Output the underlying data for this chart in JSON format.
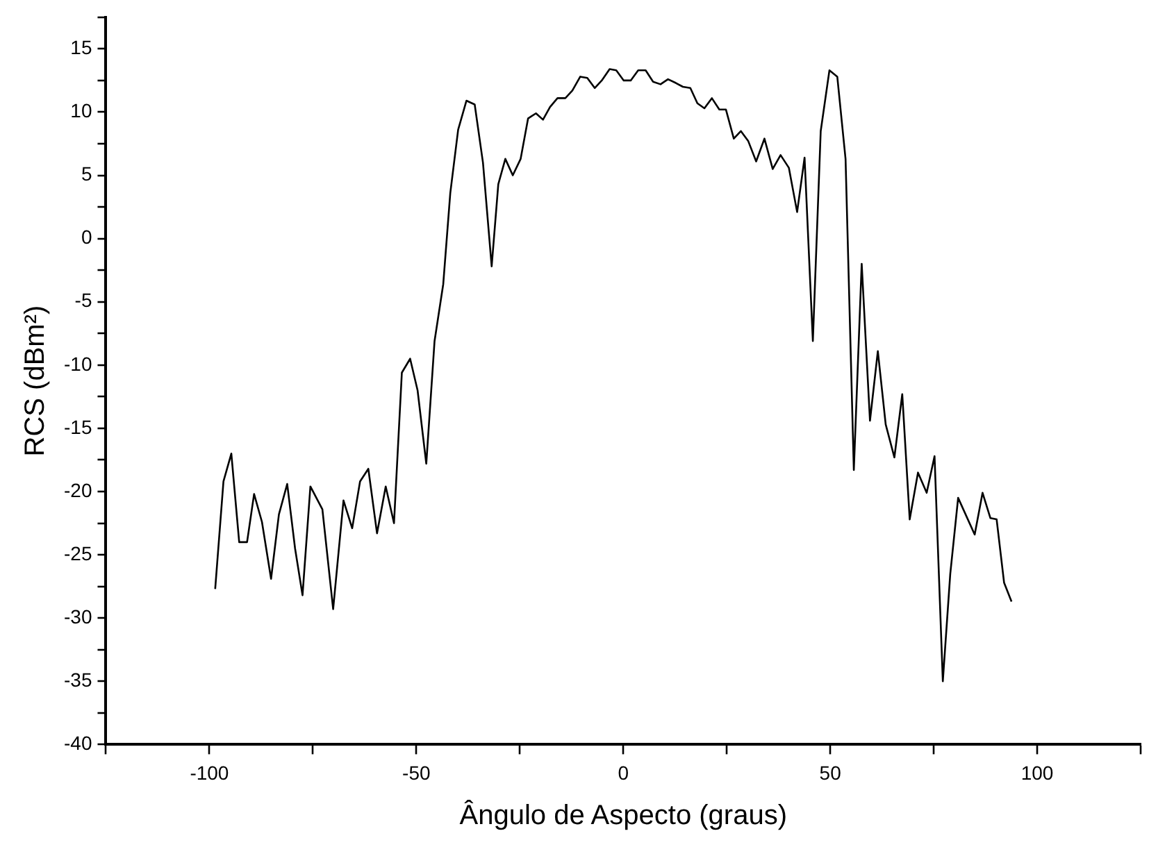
{
  "chart_data": {
    "type": "line",
    "xlabel": "Ângulo de Aspecto (graus)",
    "ylabel": "RCS (dBm²)",
    "x": [
      -98.6,
      -96.6,
      -94.7,
      -92.8,
      -90.9,
      -89.2,
      -87.3,
      -85.1,
      -83.2,
      -81.2,
      -79.3,
      -77.5,
      -75.6,
      -72.7,
      -70.1,
      -67.6,
      -65.5,
      -63.6,
      -61.6,
      -59.5,
      -57.4,
      -55.4,
      -53.5,
      -51.5,
      -49.7,
      -47.6,
      -45.6,
      -43.5,
      -41.8,
      -39.9,
      -37.9,
      -35.9,
      -33.9,
      -31.8,
      -30.2,
      -28.5,
      -26.7,
      -24.8,
      -23.0,
      -21.1,
      -19.4,
      -17.7,
      -15.9,
      -14.0,
      -12.3,
      -10.4,
      -8.7,
      -6.9,
      -5.2,
      -3.3,
      -1.7,
      0.1,
      1.8,
      3.6,
      5.4,
      7.2,
      9.0,
      10.8,
      12.7,
      14.4,
      16.2,
      17.9,
      19.6,
      21.4,
      23.2,
      24.8,
      26.7,
      28.4,
      30.2,
      32.1,
      34.1,
      36.1,
      38.0,
      40.0,
      42.0,
      43.8,
      45.8,
      47.7,
      49.8,
      51.7,
      53.7,
      55.7,
      57.6,
      59.6,
      61.5,
      63.4,
      65.5,
      67.4,
      69.2,
      71.2,
      73.3,
      75.2,
      77.2,
      79.0,
      80.9,
      84.9,
      86.8,
      88.7,
      90.2,
      92.0,
      93.8
    ],
    "series": [
      {
        "color": "#000000",
        "values": [
          -27.7,
          -19.2,
          -17.0,
          -24.0,
          -24.0,
          -20.2,
          -22.4,
          -26.9,
          -21.8,
          -19.4,
          -24.5,
          -28.2,
          -19.6,
          -21.4,
          -29.3,
          -20.7,
          -22.9,
          -19.2,
          -18.2,
          -23.3,
          -19.6,
          -22.5,
          -10.6,
          -9.5,
          -12.0,
          -17.8,
          -8.1,
          -3.6,
          3.6,
          8.6,
          10.9,
          10.6,
          6.0,
          -2.2,
          4.3,
          6.3,
          5.0,
          6.3,
          9.5,
          9.9,
          9.4,
          10.4,
          11.1,
          11.1,
          11.7,
          12.8,
          12.7,
          11.9,
          12.5,
          13.4,
          13.3,
          12.5,
          12.5,
          13.3,
          13.3,
          12.4,
          12.2,
          12.6,
          12.3,
          12.0,
          11.9,
          10.7,
          10.3,
          11.1,
          10.2,
          10.2,
          7.9,
          8.5,
          7.7,
          6.1,
          7.9,
          5.5,
          6.6,
          5.6,
          2.1,
          6.4,
          -8.1,
          8.5,
          13.3,
          12.8,
          6.3,
          -18.3,
          -2.0,
          -14.4,
          -8.9,
          -14.7,
          -17.3,
          -12.3,
          -22.2,
          -18.5,
          -20.1,
          -17.2,
          -35.0,
          -26.5,
          -20.5,
          -23.4,
          -20.1,
          -22.1,
          -22.2,
          -27.2,
          -28.7
        ]
      }
    ],
    "xlim": [
      -125,
      125
    ],
    "xticks": [
      {
        "value": -125,
        "label": null
      },
      -100,
      {
        "value": -75,
        "label": null
      },
      -50,
      {
        "value": -25,
        "label": null
      },
      0,
      {
        "value": 25,
        "label": null
      },
      50,
      {
        "value": 75,
        "label": null
      },
      100,
      {
        "value": 125,
        "label": null
      }
    ],
    "ylim": [
      -40,
      17.5
    ],
    "yticks": [
      -40,
      {
        "value": -37.5,
        "label": null
      },
      -35,
      {
        "value": -32.5,
        "label": null
      },
      -30,
      {
        "value": -27.5,
        "label": null
      },
      -25,
      {
        "value": -22.5,
        "label": null
      },
      -20,
      {
        "value": -17.5,
        "label": null
      },
      -15,
      {
        "value": -12.5,
        "label": null
      },
      -10,
      {
        "value": -7.5,
        "label": null
      },
      -5,
      {
        "value": -2.5,
        "label": null
      },
      0,
      {
        "value": 2.5,
        "label": null
      },
      5,
      {
        "value": 7.5,
        "label": null
      },
      10,
      {
        "value": 12.5,
        "label": null
      },
      15,
      {
        "value": 17.5,
        "label": null
      }
    ],
    "grid": false,
    "legend": false,
    "marker": "none",
    "line_style": "solid"
  }
}
